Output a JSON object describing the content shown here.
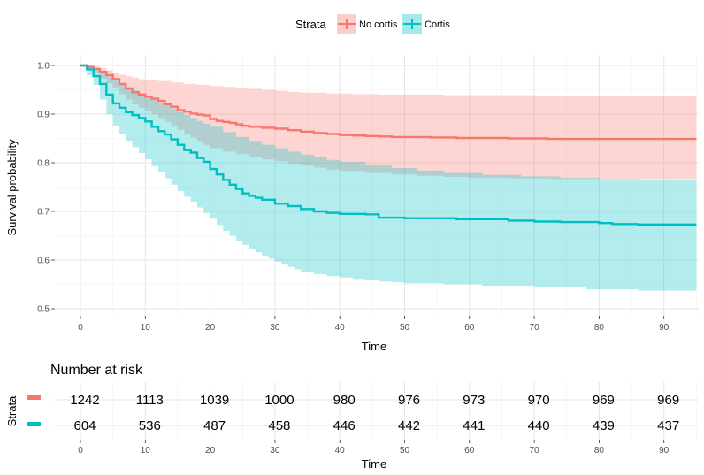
{
  "chart_data": {
    "type": "line",
    "subtype": "kaplan-meier",
    "xlabel": "Time",
    "ylabel": "Survival probability",
    "xlim": [
      0,
      95
    ],
    "ylim": [
      0.5,
      1.0
    ],
    "x_ticks": [
      0,
      10,
      20,
      30,
      40,
      50,
      60,
      70,
      80,
      90
    ],
    "y_ticks": [
      "0.5",
      "0.6",
      "0.7",
      "0.8",
      "0.9",
      "1.0"
    ],
    "grid": true,
    "legend": {
      "title": "Strata",
      "position": "top",
      "entries": [
        "No cortis",
        "Cortis"
      ]
    },
    "series": [
      {
        "name": "No cortis",
        "color": "#F8766D",
        "fill": "#F8766D",
        "surv": [
          [
            0,
            1.0
          ],
          [
            1,
            0.997
          ],
          [
            2,
            0.993
          ],
          [
            3,
            0.987
          ],
          [
            4,
            0.98
          ],
          [
            5,
            0.972
          ],
          [
            6,
            0.962
          ],
          [
            7,
            0.953
          ],
          [
            8,
            0.945
          ],
          [
            9,
            0.94
          ],
          [
            10,
            0.936
          ],
          [
            11,
            0.932
          ],
          [
            12,
            0.927
          ],
          [
            13,
            0.92
          ],
          [
            14,
            0.915
          ],
          [
            15,
            0.908
          ],
          [
            16,
            0.905
          ],
          [
            17,
            0.901
          ],
          [
            18,
            0.899
          ],
          [
            19,
            0.897
          ],
          [
            20,
            0.89
          ],
          [
            21,
            0.886
          ],
          [
            22,
            0.884
          ],
          [
            23,
            0.882
          ],
          [
            24,
            0.879
          ],
          [
            25,
            0.876
          ],
          [
            26,
            0.874
          ],
          [
            28,
            0.872
          ],
          [
            30,
            0.87
          ],
          [
            32,
            0.867
          ],
          [
            34,
            0.864
          ],
          [
            36,
            0.861
          ],
          [
            38,
            0.859
          ],
          [
            40,
            0.857
          ],
          [
            42,
            0.856
          ],
          [
            44,
            0.855
          ],
          [
            46,
            0.854
          ],
          [
            48,
            0.853
          ],
          [
            50,
            0.853
          ],
          [
            54,
            0.852
          ],
          [
            58,
            0.851
          ],
          [
            62,
            0.851
          ],
          [
            66,
            0.85
          ],
          [
            72,
            0.849
          ],
          [
            78,
            0.849
          ],
          [
            84,
            0.849
          ],
          [
            90,
            0.849
          ],
          [
            95,
            0.849
          ]
        ],
        "upper": [
          [
            0,
            1.0
          ],
          [
            1,
            1.0
          ],
          [
            2,
            0.998
          ],
          [
            3,
            0.995
          ],
          [
            4,
            0.99
          ],
          [
            5,
            0.985
          ],
          [
            6,
            0.981
          ],
          [
            7,
            0.978
          ],
          [
            8,
            0.975
          ],
          [
            9,
            0.972
          ],
          [
            10,
            0.97
          ],
          [
            12,
            0.968
          ],
          [
            14,
            0.965
          ],
          [
            16,
            0.962
          ],
          [
            18,
            0.96
          ],
          [
            20,
            0.958
          ],
          [
            22,
            0.956
          ],
          [
            24,
            0.954
          ],
          [
            26,
            0.952
          ],
          [
            28,
            0.95
          ],
          [
            30,
            0.948
          ],
          [
            32,
            0.946
          ],
          [
            34,
            0.944
          ],
          [
            38,
            0.942
          ],
          [
            42,
            0.941
          ],
          [
            46,
            0.94
          ],
          [
            50,
            0.94
          ],
          [
            56,
            0.939
          ],
          [
            62,
            0.939
          ],
          [
            70,
            0.938
          ],
          [
            95,
            0.938
          ]
        ],
        "lower": [
          [
            0,
            1.0
          ],
          [
            1,
            0.99
          ],
          [
            2,
            0.983
          ],
          [
            3,
            0.973
          ],
          [
            4,
            0.963
          ],
          [
            5,
            0.953
          ],
          [
            6,
            0.941
          ],
          [
            7,
            0.93
          ],
          [
            8,
            0.92
          ],
          [
            9,
            0.913
          ],
          [
            10,
            0.906
          ],
          [
            11,
            0.899
          ],
          [
            12,
            0.892
          ],
          [
            13,
            0.884
          ],
          [
            14,
            0.876
          ],
          [
            15,
            0.868
          ],
          [
            16,
            0.86
          ],
          [
            17,
            0.852
          ],
          [
            18,
            0.845
          ],
          [
            19,
            0.837
          ],
          [
            20,
            0.83
          ],
          [
            22,
            0.823
          ],
          [
            24,
            0.818
          ],
          [
            26,
            0.812
          ],
          [
            28,
            0.807
          ],
          [
            30,
            0.803
          ],
          [
            32,
            0.798
          ],
          [
            34,
            0.794
          ],
          [
            36,
            0.79
          ],
          [
            38,
            0.786
          ],
          [
            40,
            0.783
          ],
          [
            44,
            0.779
          ],
          [
            48,
            0.776
          ],
          [
            52,
            0.773
          ],
          [
            56,
            0.771
          ],
          [
            60,
            0.769
          ],
          [
            66,
            0.768
          ],
          [
            72,
            0.767
          ],
          [
            95,
            0.766
          ]
        ]
      },
      {
        "name": "Cortis",
        "color": "#00BFC4",
        "fill": "#00BFC4",
        "surv": [
          [
            0,
            1.0
          ],
          [
            1,
            0.992
          ],
          [
            2,
            0.978
          ],
          [
            3,
            0.962
          ],
          [
            4,
            0.94
          ],
          [
            5,
            0.922
          ],
          [
            6,
            0.913
          ],
          [
            7,
            0.904
          ],
          [
            8,
            0.898
          ],
          [
            9,
            0.892
          ],
          [
            10,
            0.885
          ],
          [
            11,
            0.874
          ],
          [
            12,
            0.865
          ],
          [
            13,
            0.858
          ],
          [
            14,
            0.848
          ],
          [
            15,
            0.837
          ],
          [
            16,
            0.826
          ],
          [
            17,
            0.821
          ],
          [
            18,
            0.81
          ],
          [
            19,
            0.802
          ],
          [
            20,
            0.787
          ],
          [
            21,
            0.776
          ],
          [
            22,
            0.765
          ],
          [
            23,
            0.755
          ],
          [
            24,
            0.746
          ],
          [
            25,
            0.737
          ],
          [
            26,
            0.732
          ],
          [
            27,
            0.728
          ],
          [
            28,
            0.724
          ],
          [
            30,
            0.716
          ],
          [
            32,
            0.711
          ],
          [
            34,
            0.705
          ],
          [
            36,
            0.7
          ],
          [
            38,
            0.697
          ],
          [
            40,
            0.695
          ],
          [
            44,
            0.694
          ],
          [
            46,
            0.687
          ],
          [
            50,
            0.686
          ],
          [
            56,
            0.686
          ],
          [
            58,
            0.684
          ],
          [
            62,
            0.684
          ],
          [
            66,
            0.681
          ],
          [
            70,
            0.679
          ],
          [
            74,
            0.678
          ],
          [
            80,
            0.676
          ],
          [
            82,
            0.674
          ],
          [
            86,
            0.673
          ],
          [
            90,
            0.673
          ],
          [
            95,
            0.673
          ]
        ],
        "upper": [
          [
            0,
            1.0
          ],
          [
            1,
            0.998
          ],
          [
            2,
            0.993
          ],
          [
            3,
            0.986
          ],
          [
            4,
            0.977
          ],
          [
            5,
            0.969
          ],
          [
            6,
            0.962
          ],
          [
            7,
            0.955
          ],
          [
            8,
            0.949
          ],
          [
            9,
            0.943
          ],
          [
            10,
            0.937
          ],
          [
            11,
            0.93
          ],
          [
            12,
            0.923
          ],
          [
            13,
            0.917
          ],
          [
            14,
            0.911
          ],
          [
            15,
            0.904
          ],
          [
            16,
            0.898
          ],
          [
            17,
            0.892
          ],
          [
            18,
            0.886
          ],
          [
            19,
            0.88
          ],
          [
            20,
            0.874
          ],
          [
            22,
            0.863
          ],
          [
            24,
            0.853
          ],
          [
            26,
            0.845
          ],
          [
            28,
            0.837
          ],
          [
            30,
            0.83
          ],
          [
            32,
            0.823
          ],
          [
            34,
            0.817
          ],
          [
            36,
            0.811
          ],
          [
            38,
            0.806
          ],
          [
            40,
            0.802
          ],
          [
            44,
            0.795
          ],
          [
            48,
            0.789
          ],
          [
            52,
            0.784
          ],
          [
            56,
            0.779
          ],
          [
            62,
            0.775
          ],
          [
            68,
            0.772
          ],
          [
            74,
            0.769
          ],
          [
            80,
            0.767
          ],
          [
            86,
            0.766
          ],
          [
            95,
            0.766
          ]
        ],
        "lower": [
          [
            0,
            1.0
          ],
          [
            1,
            0.98
          ],
          [
            2,
            0.96
          ],
          [
            3,
            0.93
          ],
          [
            4,
            0.9
          ],
          [
            5,
            0.875
          ],
          [
            6,
            0.86
          ],
          [
            7,
            0.845
          ],
          [
            8,
            0.832
          ],
          [
            9,
            0.82
          ],
          [
            10,
            0.807
          ],
          [
            11,
            0.793
          ],
          [
            12,
            0.78
          ],
          [
            13,
            0.768
          ],
          [
            14,
            0.755
          ],
          [
            15,
            0.742
          ],
          [
            16,
            0.73
          ],
          [
            17,
            0.72
          ],
          [
            18,
            0.708
          ],
          [
            19,
            0.697
          ],
          [
            20,
            0.685
          ],
          [
            21,
            0.672
          ],
          [
            22,
            0.66
          ],
          [
            23,
            0.65
          ],
          [
            24,
            0.64
          ],
          [
            25,
            0.631
          ],
          [
            26,
            0.623
          ],
          [
            27,
            0.616
          ],
          [
            28,
            0.609
          ],
          [
            29,
            0.603
          ],
          [
            30,
            0.597
          ],
          [
            31,
            0.591
          ],
          [
            32,
            0.586
          ],
          [
            33,
            0.581
          ],
          [
            34,
            0.576
          ],
          [
            36,
            0.571
          ],
          [
            38,
            0.567
          ],
          [
            40,
            0.564
          ],
          [
            42,
            0.561
          ],
          [
            44,
            0.559
          ],
          [
            46,
            0.556
          ],
          [
            48,
            0.554
          ],
          [
            50,
            0.552
          ],
          [
            56,
            0.55
          ],
          [
            62,
            0.547
          ],
          [
            70,
            0.544
          ],
          [
            78,
            0.54
          ],
          [
            86,
            0.537
          ],
          [
            95,
            0.537
          ]
        ]
      }
    ],
    "risk_table": {
      "title": "Number at risk",
      "ylabel": "Strata",
      "xlabel": "Time",
      "times": [
        0,
        10,
        20,
        30,
        40,
        50,
        60,
        70,
        80,
        90
      ],
      "rows": [
        {
          "name": "No cortis",
          "color": "#F8766D",
          "values": [
            "1242",
            "1113",
            "1039",
            "1000",
            "980",
            "976",
            "973",
            "970",
            "969",
            "969"
          ]
        },
        {
          "name": "Cortis",
          "color": "#00BFC4",
          "values": [
            "604",
            "536",
            "487",
            "458",
            "446",
            "442",
            "441",
            "440",
            "439",
            "437"
          ]
        }
      ]
    }
  }
}
